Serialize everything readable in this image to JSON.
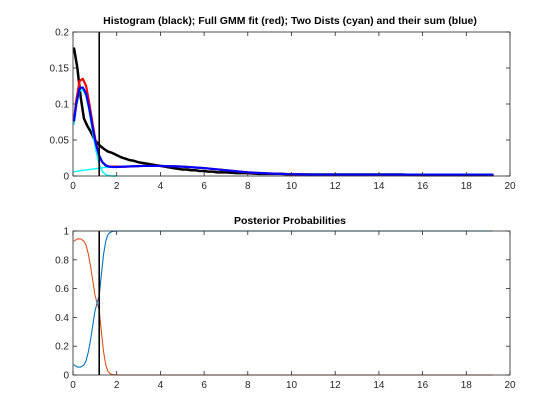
{
  "chart_data": [
    {
      "type": "line",
      "title": "Histogram (black); Full GMM fit (red); Two Dists (cyan) and their sum (blue)",
      "xlabel": "",
      "ylabel": "",
      "xlim": [
        0,
        20
      ],
      "ylim": [
        0,
        0.2
      ],
      "x_ticks": [
        0,
        2,
        4,
        6,
        8,
        10,
        12,
        14,
        16,
        18,
        20
      ],
      "y_ticks": [
        0,
        0.05,
        0.1,
        0.15,
        0.2
      ],
      "x_tick_labels": [
        "0",
        "2",
        "4",
        "6",
        "8",
        "10",
        "12",
        "14",
        "16",
        "18",
        "20"
      ],
      "y_tick_labels": [
        "0",
        "0.05",
        "0.1",
        "0.15",
        "0.2"
      ],
      "grid": false,
      "legend": "none",
      "vertical_line": {
        "x": 1.2,
        "color": "#000000"
      },
      "series": [
        {
          "color": "#000000",
          "width": 2.5,
          "x": [
            0.05,
            0.2,
            0.35,
            0.5,
            0.65,
            0.8,
            1.0,
            1.2,
            1.4,
            1.6,
            1.8,
            2.0,
            2.2,
            2.4,
            2.6,
            2.8,
            3.0,
            3.2,
            3.4,
            3.6,
            3.8,
            4.0,
            4.2,
            4.4,
            4.6,
            4.8,
            5.0,
            5.2,
            5.4,
            5.6,
            5.8,
            6.0,
            6.2,
            6.4,
            6.6,
            6.8,
            7.0,
            7.5,
            8.0,
            8.5,
            9.0,
            9.5,
            10,
            11,
            12,
            13,
            14,
            15,
            16,
            17,
            18,
            19.2
          ],
          "y": [
            0.177,
            0.15,
            0.11,
            0.08,
            0.07,
            0.062,
            0.05,
            0.043,
            0.038,
            0.034,
            0.032,
            0.029,
            0.026,
            0.024,
            0.022,
            0.021,
            0.019,
            0.018,
            0.017,
            0.016,
            0.015,
            0.014,
            0.013,
            0.012,
            0.011,
            0.01,
            0.009,
            0.009,
            0.008,
            0.008,
            0.007,
            0.007,
            0.006,
            0.006,
            0.005,
            0.005,
            0.005,
            0.004,
            0.004,
            0.003,
            0.003,
            0.003,
            0.002,
            0.002,
            0.002,
            0.002,
            0.002,
            0.002,
            0.001,
            0.001,
            0.001,
            0.001
          ]
        },
        {
          "color": "#ff0000",
          "width": 2.2,
          "x": [
            0.05,
            0.15,
            0.3,
            0.45,
            0.6,
            0.75,
            0.9,
            1.05,
            1.2,
            1.35,
            1.5,
            1.65,
            1.8,
            2.0,
            2.4,
            2.8,
            3.2,
            3.6,
            4.0,
            4.5,
            5.0,
            5.5,
            6.0,
            6.5,
            7.0,
            7.5,
            8.0,
            9.0,
            10,
            11,
            12,
            13,
            14,
            15,
            16,
            17,
            18,
            19.2
          ],
          "y": [
            0.078,
            0.105,
            0.132,
            0.135,
            0.125,
            0.1,
            0.072,
            0.046,
            0.028,
            0.019,
            0.015,
            0.013,
            0.013,
            0.013,
            0.013,
            0.0135,
            0.014,
            0.014,
            0.014,
            0.0135,
            0.013,
            0.012,
            0.011,
            0.0095,
            0.008,
            0.0065,
            0.005,
            0.0035,
            0.0025,
            0.002,
            0.002,
            0.002,
            0.002,
            0.002,
            0.002,
            0.002,
            0.002,
            0.002
          ]
        },
        {
          "color": "#00ffff",
          "width": 1.4,
          "x": [
            0.05,
            0.15,
            0.3,
            0.45,
            0.6,
            0.75,
            0.9,
            1.05,
            1.2,
            1.35,
            1.5,
            1.65,
            1.8,
            2.0
          ],
          "y": [
            0.072,
            0.095,
            0.118,
            0.12,
            0.11,
            0.088,
            0.06,
            0.035,
            0.016,
            0.006,
            0.002,
            0.0005,
            0,
            0
          ]
        },
        {
          "color": "#00ffff",
          "width": 1.4,
          "x": [
            0.05,
            0.5,
            1.0,
            1.5,
            2.0,
            2.5,
            3.0,
            3.5,
            4.0,
            4.5,
            5.0,
            5.5,
            6.0,
            6.5,
            7.0,
            7.5,
            8.0,
            9.0,
            10,
            11,
            12,
            13,
            14,
            15,
            16,
            17,
            18,
            19.2
          ],
          "y": [
            0.006,
            0.008,
            0.01,
            0.012,
            0.0125,
            0.013,
            0.0135,
            0.014,
            0.014,
            0.0135,
            0.013,
            0.012,
            0.011,
            0.0095,
            0.008,
            0.0065,
            0.005,
            0.0035,
            0.0025,
            0.002,
            0.002,
            0.002,
            0.002,
            0.002,
            0.002,
            0.002,
            0.002,
            0.002
          ]
        },
        {
          "color": "#0000ff",
          "width": 2.2,
          "x": [
            0.05,
            0.15,
            0.3,
            0.45,
            0.6,
            0.75,
            0.9,
            1.05,
            1.2,
            1.35,
            1.5,
            1.65,
            1.8,
            2.0,
            2.4,
            2.8,
            3.2,
            3.6,
            4.0,
            4.5,
            5.0,
            5.5,
            6.0,
            6.5,
            7.0,
            7.5,
            8.0,
            9.0,
            10,
            11,
            12,
            13,
            14,
            15,
            16,
            17,
            18,
            19.2
          ],
          "y": [
            0.077,
            0.1,
            0.122,
            0.123,
            0.114,
            0.093,
            0.067,
            0.044,
            0.028,
            0.019,
            0.0145,
            0.013,
            0.0125,
            0.0125,
            0.013,
            0.0135,
            0.014,
            0.014,
            0.014,
            0.0135,
            0.013,
            0.012,
            0.011,
            0.0095,
            0.008,
            0.0065,
            0.005,
            0.0035,
            0.0025,
            0.002,
            0.002,
            0.002,
            0.002,
            0.002,
            0.002,
            0.002,
            0.002,
            0.002
          ]
        }
      ]
    },
    {
      "type": "line",
      "title": "Posterior Probabilities",
      "xlabel": "",
      "ylabel": "",
      "xlim": [
        0,
        20
      ],
      "ylim": [
        0,
        1
      ],
      "x_ticks": [
        0,
        2,
        4,
        6,
        8,
        10,
        12,
        14,
        16,
        18,
        20
      ],
      "y_ticks": [
        0,
        0.2,
        0.4,
        0.6,
        0.8,
        1
      ],
      "x_tick_labels": [
        "0",
        "2",
        "4",
        "6",
        "8",
        "10",
        "12",
        "14",
        "16",
        "18",
        "20"
      ],
      "y_tick_labels": [
        "0",
        "0.2",
        "0.4",
        "0.6",
        "0.8",
        "1"
      ],
      "grid": false,
      "legend": "none",
      "vertical_line": {
        "x": 1.2,
        "color": "#000000"
      },
      "series": [
        {
          "color": "#d95319",
          "width": 1.1,
          "x": [
            0.05,
            0.2,
            0.35,
            0.5,
            0.6,
            0.7,
            0.8,
            0.9,
            1.0,
            1.1,
            1.2,
            1.3,
            1.4,
            1.5,
            1.6,
            1.7,
            1.8,
            2.0,
            2.5,
            3,
            4,
            6,
            8,
            10,
            12,
            14,
            16,
            18,
            19.2
          ],
          "y": [
            0.93,
            0.945,
            0.945,
            0.93,
            0.9,
            0.84,
            0.76,
            0.66,
            0.56,
            0.5,
            0.45,
            0.3,
            0.16,
            0.07,
            0.025,
            0.01,
            0.003,
            0,
            0,
            0,
            0,
            0,
            0,
            0,
            0,
            0,
            0,
            0,
            0
          ]
        },
        {
          "color": "#0072bd",
          "width": 1.1,
          "x": [
            0.05,
            0.2,
            0.35,
            0.5,
            0.6,
            0.7,
            0.8,
            0.9,
            1.0,
            1.1,
            1.2,
            1.3,
            1.4,
            1.5,
            1.6,
            1.7,
            1.8,
            2.0,
            2.5,
            3,
            4,
            6,
            8,
            10,
            12,
            14,
            16,
            18,
            19.2
          ],
          "y": [
            0.07,
            0.055,
            0.055,
            0.07,
            0.1,
            0.16,
            0.24,
            0.34,
            0.44,
            0.5,
            0.55,
            0.7,
            0.84,
            0.93,
            0.975,
            0.99,
            0.997,
            1,
            1,
            1,
            1,
            1,
            1,
            1,
            1,
            1,
            1,
            1,
            1
          ]
        }
      ]
    }
  ]
}
